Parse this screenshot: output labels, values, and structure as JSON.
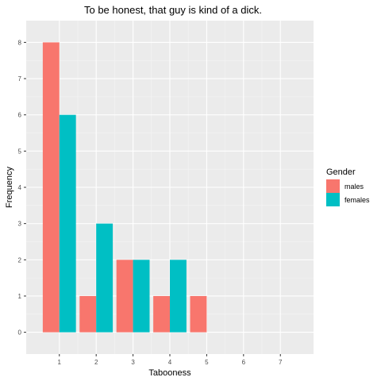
{
  "chart_data": {
    "type": "bar",
    "title": "To be honest, that guy is kind of a dick.",
    "xlabel": "Tabooness",
    "ylabel": "Frequency",
    "x_ticks": [
      1,
      2,
      3,
      4,
      5,
      6,
      7
    ],
    "y_ticks": [
      0,
      1,
      2,
      3,
      4,
      5,
      6,
      7,
      8
    ],
    "xlim": [
      0.1,
      7.9
    ],
    "ylim": [
      -0.6,
      8.6
    ],
    "grid": true,
    "legend": {
      "title": "Gender",
      "position": "right"
    },
    "series": [
      {
        "name": "males",
        "color": "#F8766D",
        "x": [
          1,
          2,
          3,
          4,
          5
        ],
        "values": [
          8,
          1,
          2,
          1,
          1
        ]
      },
      {
        "name": "females",
        "color": "#00BFC4",
        "x": [
          1,
          2,
          3,
          4
        ],
        "values": [
          6,
          3,
          2,
          2
        ]
      }
    ]
  }
}
